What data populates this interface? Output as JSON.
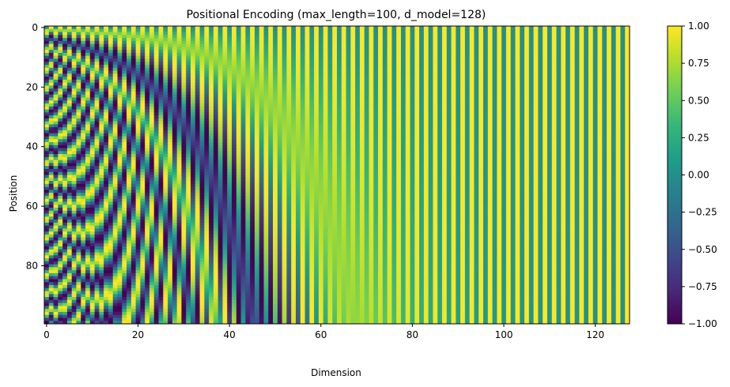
{
  "chart_data": {
    "type": "heatmap",
    "title": "Positional Encoding (max_length=100, d_model=128)",
    "xlabel": "Dimension",
    "ylabel": "Position",
    "rows": 100,
    "cols": 128,
    "formula": "PE(pos, 2i) = sin(pos / 10000^(2i/d_model)), PE(pos, 2i+1) = cos(pos / 10000^(2i/d_model))",
    "colormap": "viridis",
    "xlim": [
      -0.5,
      127.5
    ],
    "ylim": [
      99.5,
      -0.5
    ],
    "xticks": [
      0,
      20,
      40,
      60,
      80,
      100,
      120
    ],
    "yticks": [
      0,
      20,
      40,
      60,
      80
    ],
    "colorbar": {
      "range": [
        -1.0,
        1.0
      ],
      "ticks": [
        -1.0,
        -0.75,
        -0.5,
        -0.25,
        0.0,
        0.25,
        0.5,
        0.75,
        1.0
      ],
      "tick_labels": [
        "−1.00",
        "−0.75",
        "−0.50",
        "−0.25",
        "0.00",
        "0.25",
        "0.50",
        "0.75",
        "1.00"
      ]
    },
    "grid": false
  }
}
